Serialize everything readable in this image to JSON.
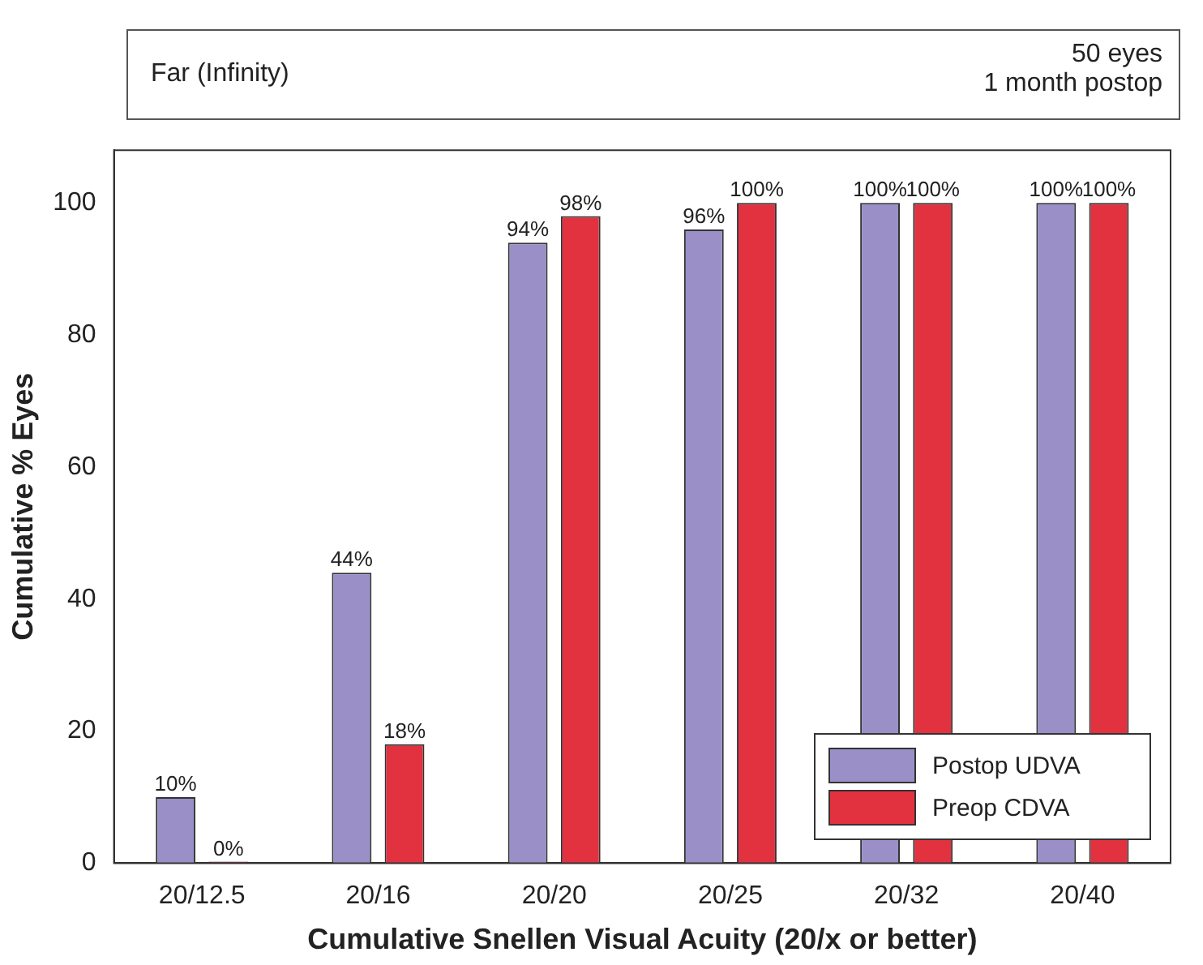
{
  "chart_data": {
    "type": "bar",
    "xlabel": "Cumulative Snellen Visual Acuity (20/x or better)",
    "ylabel": "Cumulative % Eyes",
    "categories": [
      "20/12.5",
      "20/16",
      "20/20",
      "20/25",
      "20/32",
      "20/40"
    ],
    "series": [
      {
        "name": "Postop UDVA",
        "color": "#9b8fc7",
        "values": [
          10,
          44,
          94,
          96,
          100,
          100
        ],
        "value_labels": [
          "10%",
          "44%",
          "94%",
          "96%",
          "100%",
          "100%"
        ]
      },
      {
        "name": "Preop CDVA",
        "color": "#e2313f",
        "values": [
          0,
          18,
          98,
          100,
          100,
          100
        ],
        "value_labels": [
          "0%",
          "18%",
          "98%",
          "100%",
          "100%",
          "100%"
        ]
      }
    ],
    "ylim": [
      0,
      108
    ],
    "yticks": [
      0,
      20,
      40,
      60,
      80,
      100
    ],
    "grid": false,
    "legend": "bottom right",
    "annotations": [
      "Far (Infinity)",
      "50 eyes\n1 month postop"
    ]
  }
}
